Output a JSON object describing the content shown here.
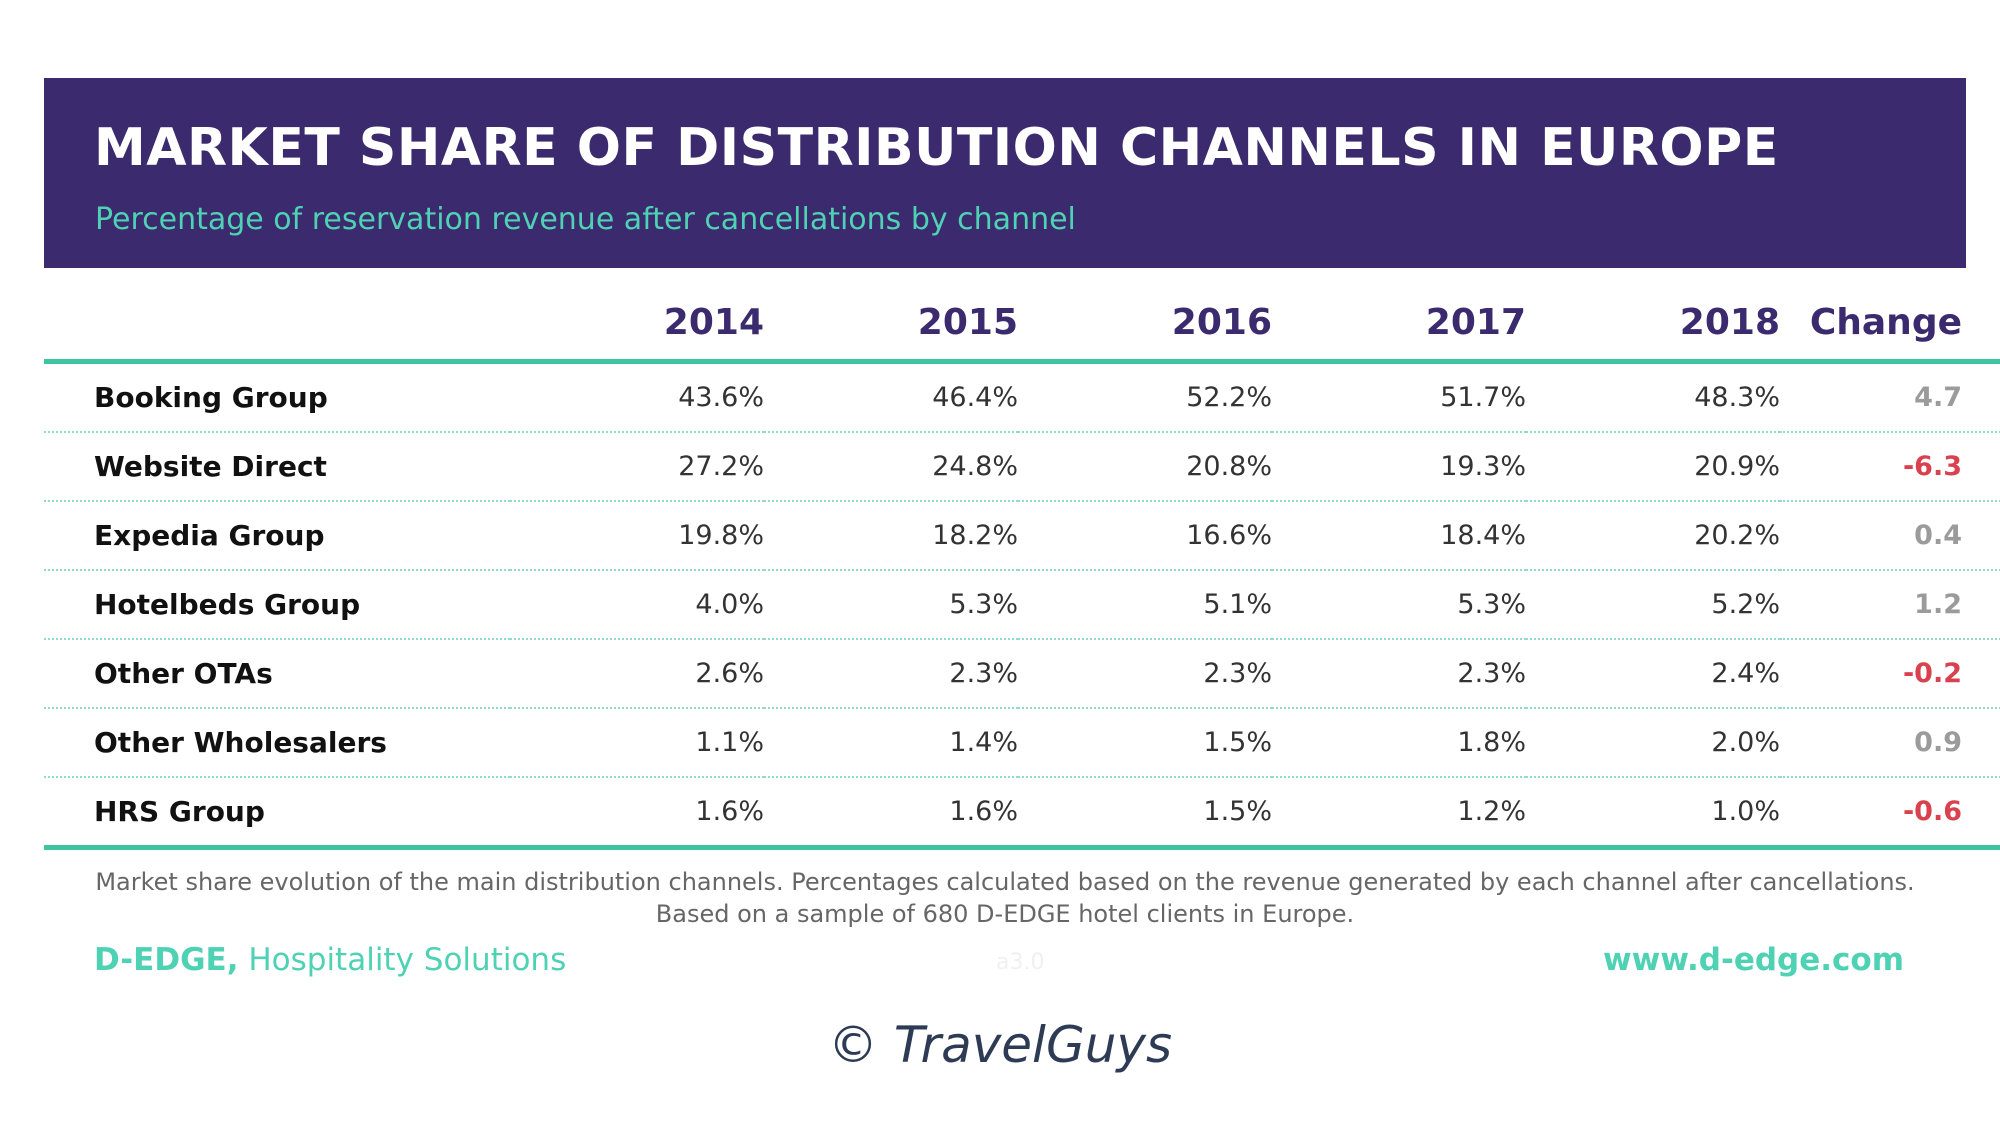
{
  "header": {
    "title": "MARKET SHARE OF DISTRIBUTION CHANNELS IN EUROPE",
    "subtitle": "Percentage of reservation revenue after cancellations by channel"
  },
  "table": {
    "columns": [
      "2014",
      "2015",
      "2016",
      "2017",
      "2018",
      "Change"
    ],
    "rows": [
      {
        "name": "Booking Group",
        "values": [
          "43.6%",
          "46.4%",
          "52.2%",
          "51.7%",
          "48.3%"
        ],
        "change": "4.7",
        "trend": "pos"
      },
      {
        "name": "Website Direct",
        "values": [
          "27.2%",
          "24.8%",
          "20.8%",
          "19.3%",
          "20.9%"
        ],
        "change": "-6.3",
        "trend": "neg"
      },
      {
        "name": "Expedia Group",
        "values": [
          "19.8%",
          "18.2%",
          "16.6%",
          "18.4%",
          "20.2%"
        ],
        "change": "0.4",
        "trend": "pos"
      },
      {
        "name": "Hotelbeds Group",
        "values": [
          "4.0%",
          "5.3%",
          "5.1%",
          "5.3%",
          "5.2%"
        ],
        "change": "1.2",
        "trend": "pos"
      },
      {
        "name": "Other OTAs",
        "values": [
          "2.6%",
          "2.3%",
          "2.3%",
          "2.3%",
          "2.4%"
        ],
        "change": "-0.2",
        "trend": "neg"
      },
      {
        "name": "Other Wholesalers",
        "values": [
          "1.1%",
          "1.4%",
          "1.5%",
          "1.8%",
          "2.0%"
        ],
        "change": "0.9",
        "trend": "pos"
      },
      {
        "name": "HRS Group",
        "values": [
          "1.6%",
          "1.6%",
          "1.5%",
          "1.2%",
          "1.0%"
        ],
        "change": "-0.6",
        "trend": "neg"
      }
    ]
  },
  "footer": {
    "note": "Market share evolution of the main distribution channels. Percentages calculated based on the revenue generated by each channel after cancellations. Based on a sample of 680 D-EDGE hotel clients in Europe.",
    "brand_name": "D-EDGE,",
    "brand_tagline": " Hospitality Solutions",
    "version": "a3.0",
    "url": "www.d-edge.com"
  },
  "credit": "© TravelGuys",
  "colors": {
    "header_bg": "#3b2a6e",
    "accent_teal": "#4fd1b4",
    "negative": "#d9414e",
    "positive": "#9b9b9b"
  },
  "chart_data": {
    "type": "table",
    "title": "MARKET SHARE OF DISTRIBUTION CHANNELS IN EUROPE",
    "subtitle": "Percentage of reservation revenue after cancellations by channel",
    "columns": [
      "2014",
      "2015",
      "2016",
      "2017",
      "2018",
      "Change"
    ],
    "categories": [
      "Booking Group",
      "Website Direct",
      "Expedia Group",
      "Hotelbeds Group",
      "Other OTAs",
      "Other Wholesalers",
      "HRS Group"
    ],
    "series": [
      {
        "name": "2014",
        "values": [
          43.6,
          27.2,
          19.8,
          4.0,
          2.6,
          1.1,
          1.6
        ]
      },
      {
        "name": "2015",
        "values": [
          46.4,
          24.8,
          18.2,
          5.3,
          2.3,
          1.4,
          1.6
        ]
      },
      {
        "name": "2016",
        "values": [
          52.2,
          20.8,
          16.6,
          5.1,
          2.3,
          1.5,
          1.5
        ]
      },
      {
        "name": "2017",
        "values": [
          51.7,
          19.3,
          18.4,
          5.3,
          2.3,
          1.8,
          1.2
        ]
      },
      {
        "name": "2018",
        "values": [
          48.3,
          20.9,
          20.2,
          5.2,
          2.4,
          2.0,
          1.0
        ]
      },
      {
        "name": "Change",
        "values": [
          4.7,
          -6.3,
          0.4,
          1.2,
          -0.2,
          0.9,
          -0.6
        ]
      }
    ]
  }
}
